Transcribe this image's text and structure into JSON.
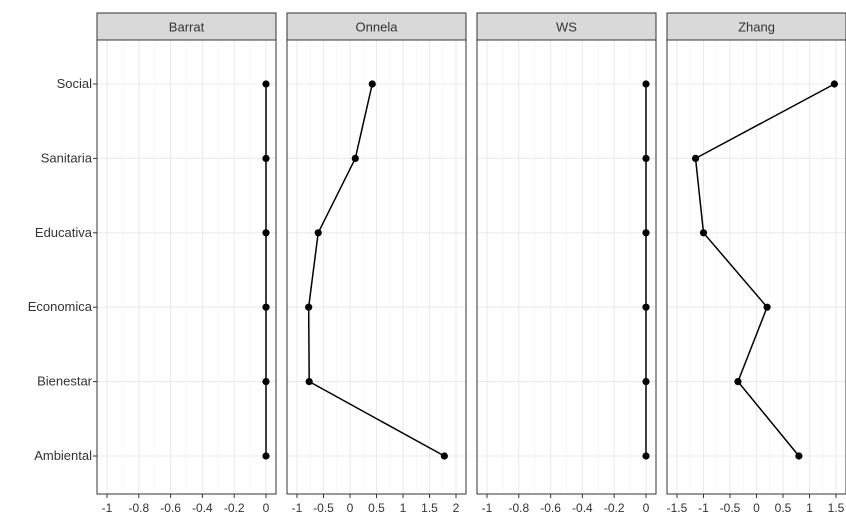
{
  "chart_data": {
    "type": "line",
    "facets": [
      "Barrat",
      "Onnela",
      "WS",
      "Zhang"
    ],
    "categories": [
      "Social",
      "Sanitaria",
      "Educativa",
      "Economica",
      "Bienestar",
      "Ambiental"
    ],
    "panels": [
      {
        "name": "Barrat",
        "xlim": [
          -1.0,
          0.0
        ],
        "xticks": [
          -1,
          -0.8,
          -0.6,
          -0.4,
          -0.2,
          0
        ],
        "xtick_labels": [
          "-1",
          "-0.8",
          "-0.6",
          "-0.4",
          "-0.2",
          "0"
        ],
        "values": [
          0,
          0,
          0,
          0,
          0,
          0
        ]
      },
      {
        "name": "Onnela",
        "xlim": [
          -1.0,
          2.0
        ],
        "xticks": [
          -1,
          -0.5,
          0,
          0.5,
          1,
          1.5,
          2
        ],
        "xtick_labels": [
          "-1",
          "-0.5",
          "0",
          "0.5",
          "1",
          "1.5",
          "2"
        ],
        "values": [
          0.42,
          0.1,
          -0.6,
          -0.78,
          -0.77,
          1.78
        ]
      },
      {
        "name": "WS",
        "xlim": [
          -1.0,
          0.0
        ],
        "xticks": [
          -1,
          -0.8,
          -0.6,
          -0.4,
          -0.2,
          0
        ],
        "xtick_labels": [
          "-1",
          "-0.8",
          "-0.6",
          "-0.4",
          "-0.2",
          "0"
        ],
        "values": [
          0,
          0,
          0,
          0,
          0,
          0
        ]
      },
      {
        "name": "Zhang",
        "xlim": [
          -1.5,
          1.5
        ],
        "xticks": [
          -1.5,
          -1,
          -0.5,
          0,
          0.5,
          1,
          1.5
        ],
        "xtick_labels": [
          "-1.5",
          "-1",
          "-0.5",
          "0",
          "0.5",
          "1",
          "1.5"
        ],
        "values": [
          1.47,
          -1.15,
          -1.0,
          0.2,
          -0.35,
          0.8
        ]
      }
    ],
    "grid": true,
    "colors": {
      "strip_fill": "#d9d9d9",
      "panel_border": "#333333",
      "grid_major": "#ebebeb",
      "grid_minor": "#f5f5f5",
      "line": "#000000",
      "text": "#333333"
    }
  }
}
